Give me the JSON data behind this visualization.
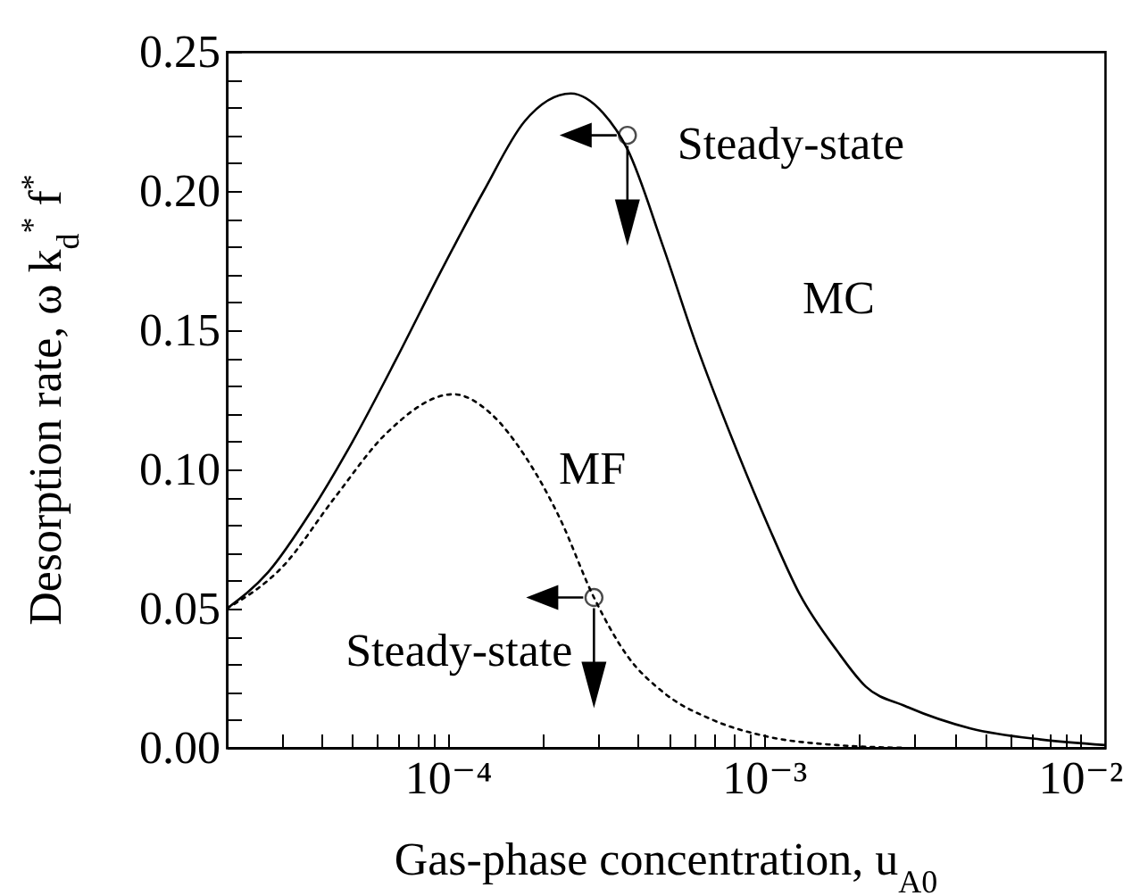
{
  "chart_data": {
    "type": "line",
    "xlabel": "Gas-phase concentration, u$_{A0}$",
    "ylabel": "Desorption rate, ω k$_{d}$$^{*}$ f$^{*}$",
    "log": "x",
    "xlim": [
      2e-05,
      0.012
    ],
    "ylim": [
      0,
      0.25
    ],
    "xticks": [
      {
        "value": 3e-05,
        "label": null
      },
      {
        "value": 4e-05,
        "label": null
      },
      {
        "value": 5e-05,
        "label": null
      },
      {
        "value": 6e-05,
        "label": null
      },
      {
        "value": 7e-05,
        "label": null
      },
      {
        "value": 8e-05,
        "label": null
      },
      {
        "value": 9e-05,
        "label": null
      },
      {
        "value": 0.0001,
        "label": "10⁻⁴"
      },
      {
        "value": 0.0002,
        "label": null
      },
      {
        "value": 0.0003,
        "label": null
      },
      {
        "value": 0.0004,
        "label": null
      },
      {
        "value": 0.0005,
        "label": null
      },
      {
        "value": 0.0006,
        "label": null
      },
      {
        "value": 0.0007,
        "label": null
      },
      {
        "value": 0.0008,
        "label": null
      },
      {
        "value": 0.0009,
        "label": null
      },
      {
        "value": 0.001,
        "label": "10⁻³"
      },
      {
        "value": 0.002,
        "label": null
      },
      {
        "value": 0.003,
        "label": null
      },
      {
        "value": 0.004,
        "label": null
      },
      {
        "value": 0.005,
        "label": null
      },
      {
        "value": 0.006,
        "label": null
      },
      {
        "value": 0.007,
        "label": null
      },
      {
        "value": 0.008,
        "label": null
      },
      {
        "value": 0.009,
        "label": null
      },
      {
        "value": 0.01,
        "label": "10⁻²"
      }
    ],
    "yticks": [
      {
        "value": 0,
        "label": "0.00"
      },
      {
        "value": 0.01,
        "label": null
      },
      {
        "value": 0.02,
        "label": null
      },
      {
        "value": 0.03,
        "label": null
      },
      {
        "value": 0.04,
        "label": null
      },
      {
        "value": 0.05,
        "label": "0.05"
      },
      {
        "value": 0.06,
        "label": null
      },
      {
        "value": 0.07,
        "label": null
      },
      {
        "value": 0.08,
        "label": null
      },
      {
        "value": 0.09,
        "label": null
      },
      {
        "value": 0.1,
        "label": "0.10"
      },
      {
        "value": 0.11,
        "label": null
      },
      {
        "value": 0.12,
        "label": null
      },
      {
        "value": 0.13,
        "label": null
      },
      {
        "value": 0.14,
        "label": null
      },
      {
        "value": 0.15,
        "label": "0.15"
      },
      {
        "value": 0.16,
        "label": null
      },
      {
        "value": 0.17,
        "label": null
      },
      {
        "value": 0.18,
        "label": null
      },
      {
        "value": 0.19,
        "label": null
      },
      {
        "value": 0.2,
        "label": "0.20"
      },
      {
        "value": 0.21,
        "label": null
      },
      {
        "value": 0.22,
        "label": null
      },
      {
        "value": 0.23,
        "label": null
      },
      {
        "value": 0.24,
        "label": null
      },
      {
        "value": 0.25,
        "label": "0.25"
      }
    ],
    "grid": false,
    "marker": "none",
    "series": [
      {
        "name": "MC",
        "color": "#000000",
        "line_style": "solid",
        "x": [
          2e-05,
          2.7e-05,
          3.7e-05,
          5e-05,
          6.9e-05,
          9.4e-05,
          0.00013,
          0.000175,
          0.000245,
          0.00031,
          0.00037,
          0.00048,
          0.00061,
          0.0008,
          0.00103,
          0.0013,
          0.0017,
          0.0021,
          0.0028,
          0.0045,
          0.0075,
          0.012
        ],
        "values": [
          0.05,
          0.063,
          0.085,
          0.11,
          0.14,
          0.17,
          0.2,
          0.225,
          0.235,
          0.228,
          0.215,
          0.18,
          0.145,
          0.11,
          0.08,
          0.055,
          0.035,
          0.022,
          0.015,
          0.007,
          0.003,
          0.001
        ]
      },
      {
        "name": "MF",
        "color": "#000000",
        "line_style": "dotted",
        "x": [
          2e-05,
          3e-05,
          4.4e-05,
          6.4e-05,
          0.000104,
          0.000137,
          0.000175,
          0.000225,
          0.00029,
          0.00037,
          0.00048,
          0.00069,
          0.00103,
          0.0017,
          0.0028
        ],
        "values": [
          0.05,
          0.065,
          0.09,
          0.113,
          0.127,
          0.12,
          0.105,
          0.083,
          0.054,
          0.033,
          0.02,
          0.01,
          0.004,
          0.001,
          0
        ]
      }
    ],
    "annotations": [
      {
        "text": "Steady-state",
        "x": 0.00037,
        "y": 0.22
      },
      {
        "text": "Steady-state",
        "x": 0.00029,
        "y": 0.054
      }
    ]
  }
}
